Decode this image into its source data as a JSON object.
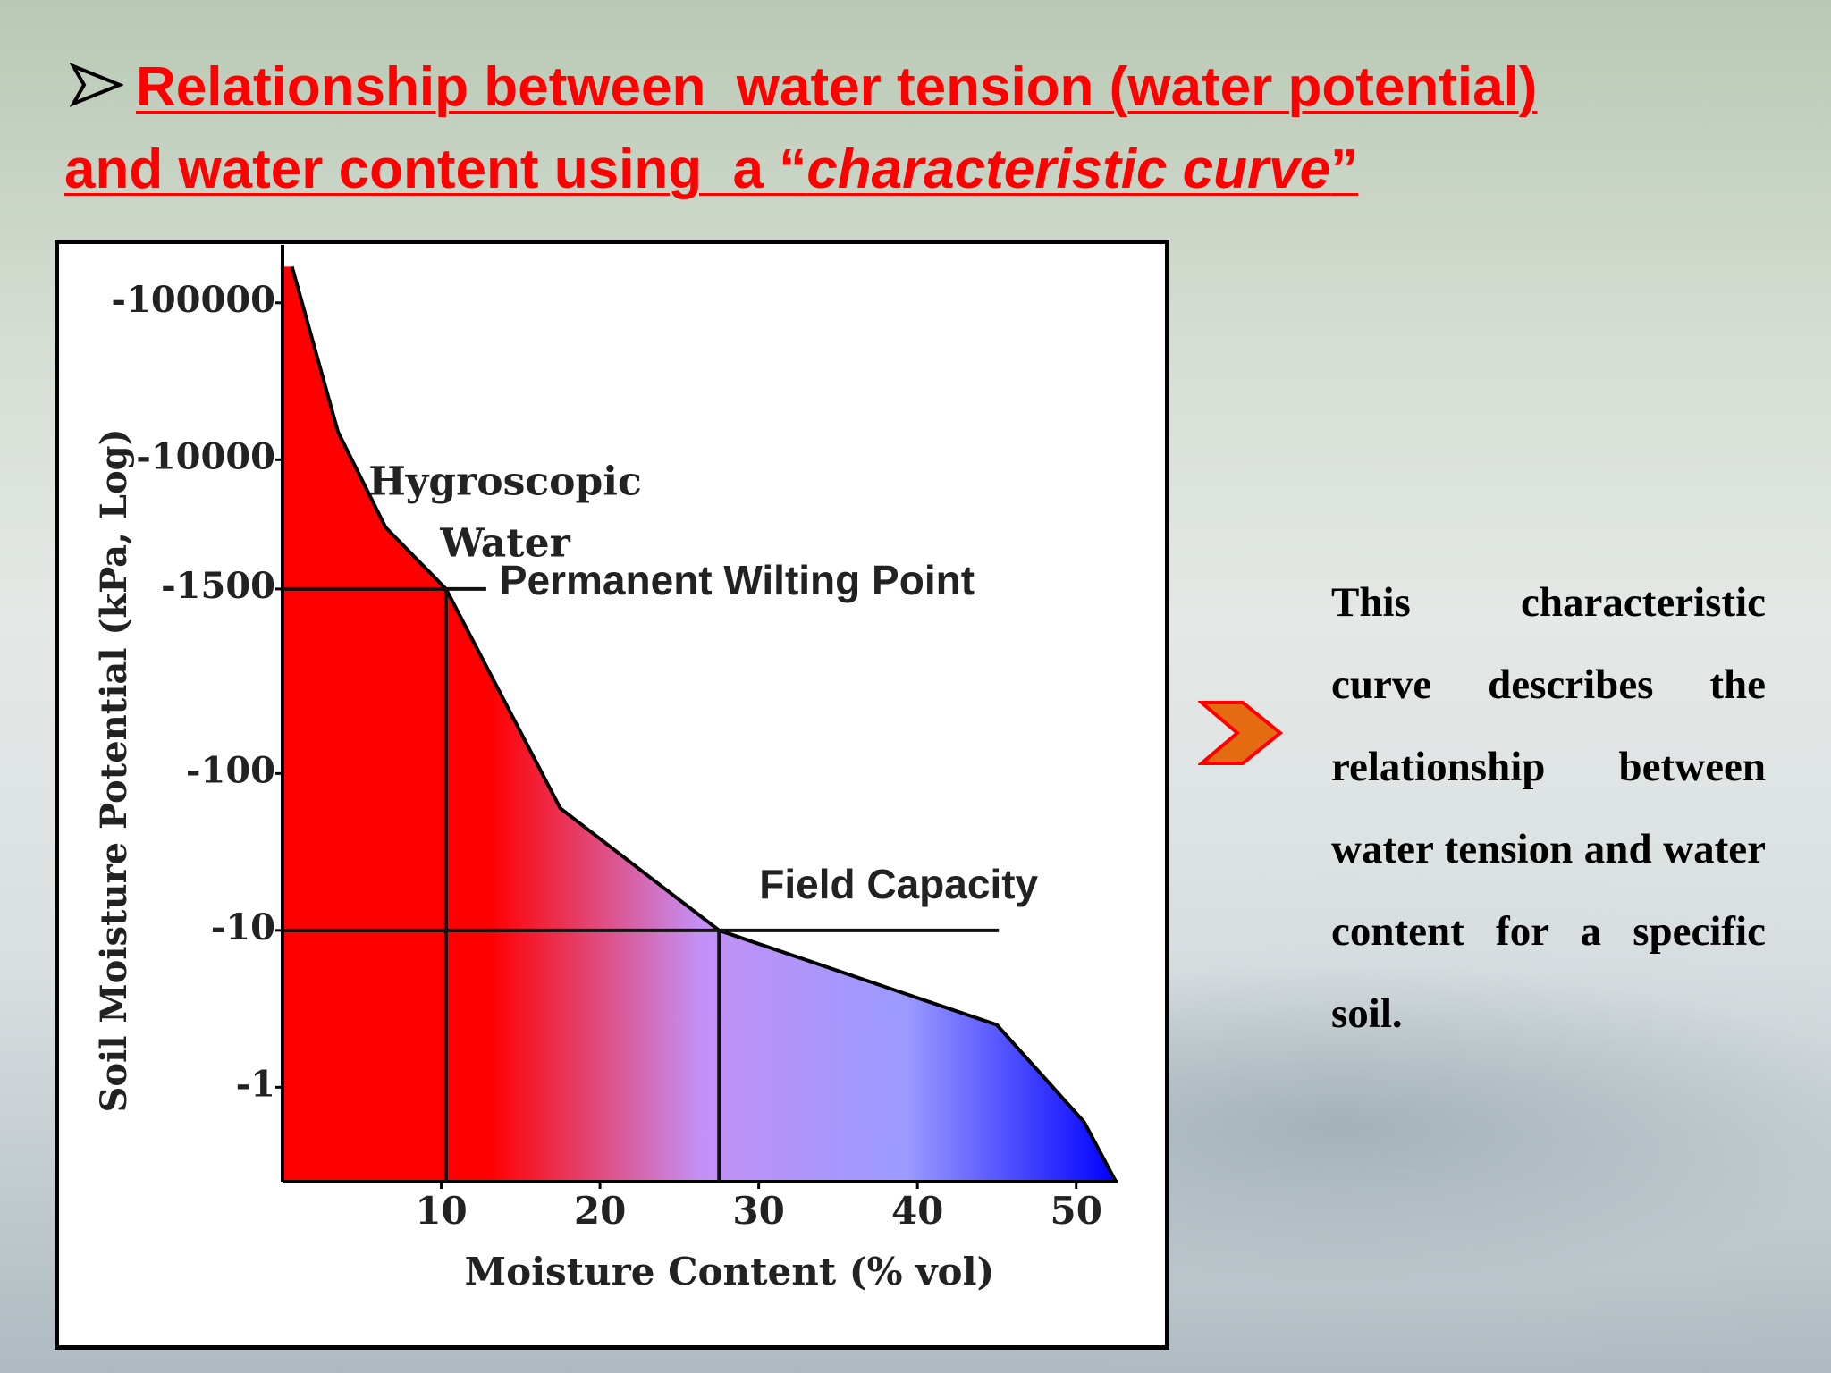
{
  "title": [
    "Relationship between  water tension (water potential)",
    "and water content using  a “",
    "characteristic curve",
    "”"
  ],
  "body_text": "This characteristic curve describes the relationship between water tension and water content for a specific soil.",
  "chart_data": {
    "type": "area",
    "x_label": "Moisture Content (% vol)",
    "y_label": "Soil Moisture Potential (kPa, Log)",
    "y_scale": "log",
    "series": [
      {
        "name": "Characteristic curve",
        "color": "#000000",
        "fill_colors": [
          "#ff0000",
          "#ff0000",
          "#c490f5",
          "#9a9aff",
          "#0000ff"
        ],
        "x": [
          0.6,
          3.5,
          6.5,
          10.3,
          17.5,
          27.5,
          45,
          50.5,
          52.5
        ],
        "values": [
          -170000,
          -15000,
          -3700,
          -1500,
          -60,
          -10,
          -2.5,
          -0.6,
          -0.25
        ]
      }
    ],
    "annotations": [
      {
        "text": [
          "Hygroscopic",
          "Water"
        ]
      },
      {
        "text": "Permanent Wilting Point",
        "x": 10.3,
        "y": -1500
      },
      {
        "text": "Field Capacity",
        "x": 27.5,
        "y": -10
      }
    ],
    "xlim": [
      0,
      53
    ],
    "ylim": [
      -0.25,
      -180000
    ],
    "xticks": [
      10,
      20,
      30,
      40,
      50
    ],
    "yticks": [
      -100000,
      -10000,
      -1500,
      -100,
      -10,
      -1
    ]
  }
}
